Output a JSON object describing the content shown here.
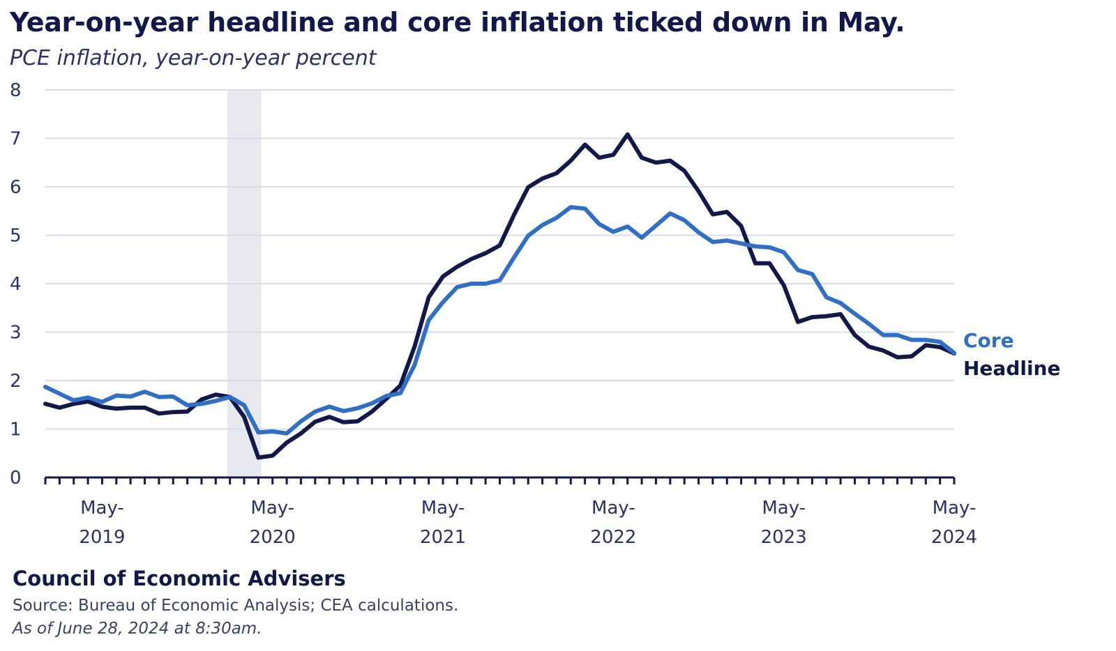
{
  "title": "Year-on-year headline and core inflation ticked down in May.",
  "subtitle": "PCE inflation, year-on-year percent",
  "footer": {
    "org": "Council of Economic Advisers",
    "source": "Source: Bureau of Economic Analysis; CEA calculations.",
    "as_of": "As of June 28, 2024 at 8:30am."
  },
  "chart_data": {
    "type": "line",
    "title": "Year-on-year headline and core inflation ticked down in May.",
    "subtitle": "PCE inflation, year-on-year percent",
    "xlabel": "",
    "ylabel": "",
    "x_range": [
      "2019-01",
      "2024-05"
    ],
    "ylim": [
      0,
      8
    ],
    "yticks": [
      0,
      1,
      2,
      3,
      4,
      5,
      6,
      7,
      8
    ],
    "grid": "horizontal",
    "x_tick_labels": [
      {
        "date": "2019-05",
        "line1": "May-",
        "line2": "2019"
      },
      {
        "date": "2020-05",
        "line1": "May-",
        "line2": "2020"
      },
      {
        "date": "2021-05",
        "line1": "May-",
        "line2": "2021"
      },
      {
        "date": "2022-05",
        "line1": "May-",
        "line2": "2022"
      },
      {
        "date": "2023-05",
        "line1": "May-",
        "line2": "2023"
      },
      {
        "date": "2024-05",
        "line1": "May-",
        "line2": "2024"
      }
    ],
    "shaded_period": {
      "start": "2020-02",
      "end": "2020-04"
    },
    "months": [
      "2019-01",
      "2019-02",
      "2019-03",
      "2019-04",
      "2019-05",
      "2019-06",
      "2019-07",
      "2019-08",
      "2019-09",
      "2019-10",
      "2019-11",
      "2019-12",
      "2020-01",
      "2020-02",
      "2020-03",
      "2020-04",
      "2020-05",
      "2020-06",
      "2020-07",
      "2020-08",
      "2020-09",
      "2020-10",
      "2020-11",
      "2020-12",
      "2021-01",
      "2021-02",
      "2021-03",
      "2021-04",
      "2021-05",
      "2021-06",
      "2021-07",
      "2021-08",
      "2021-09",
      "2021-10",
      "2021-11",
      "2021-12",
      "2022-01",
      "2022-02",
      "2022-03",
      "2022-04",
      "2022-05",
      "2022-06",
      "2022-07",
      "2022-08",
      "2022-09",
      "2022-10",
      "2022-11",
      "2022-12",
      "2023-01",
      "2023-02",
      "2023-03",
      "2023-04",
      "2023-05",
      "2023-06",
      "2023-07",
      "2023-08",
      "2023-09",
      "2023-10",
      "2023-11",
      "2023-12",
      "2024-01",
      "2024-02",
      "2024-03",
      "2024-04",
      "2024-05"
    ],
    "series": [
      {
        "name": "Headline",
        "color": "#12184a",
        "values": [
          1.52,
          1.44,
          1.52,
          1.57,
          1.46,
          1.42,
          1.44,
          1.44,
          1.32,
          1.35,
          1.36,
          1.61,
          1.71,
          1.66,
          1.25,
          0.41,
          0.45,
          0.72,
          0.91,
          1.15,
          1.25,
          1.14,
          1.16,
          1.36,
          1.62,
          1.9,
          2.7,
          3.72,
          4.15,
          4.35,
          4.51,
          4.63,
          4.79,
          5.42,
          5.99,
          6.17,
          6.28,
          6.54,
          6.87,
          6.6,
          6.66,
          7.08,
          6.6,
          6.5,
          6.54,
          6.33,
          5.91,
          5.43,
          5.48,
          5.19,
          4.42,
          4.42,
          3.97,
          3.21,
          3.31,
          3.33,
          3.37,
          2.94,
          2.7,
          2.62,
          2.48,
          2.5,
          2.73,
          2.69,
          2.56
        ]
      },
      {
        "name": "Core",
        "color": "#2f6fc6",
        "values": [
          1.87,
          1.73,
          1.59,
          1.65,
          1.56,
          1.69,
          1.67,
          1.77,
          1.66,
          1.67,
          1.49,
          1.52,
          1.58,
          1.66,
          1.49,
          0.93,
          0.95,
          0.91,
          1.16,
          1.36,
          1.46,
          1.37,
          1.43,
          1.53,
          1.68,
          1.74,
          2.32,
          3.25,
          3.62,
          3.93,
          4.0,
          4.0,
          4.07,
          4.54,
          4.99,
          5.21,
          5.36,
          5.58,
          5.55,
          5.23,
          5.07,
          5.18,
          4.95,
          5.2,
          5.45,
          5.31,
          5.06,
          4.86,
          4.89,
          4.83,
          4.77,
          4.75,
          4.65,
          4.28,
          4.2,
          3.72,
          3.6,
          3.38,
          3.17,
          2.94,
          2.94,
          2.84,
          2.84,
          2.8,
          2.57
        ]
      }
    ]
  }
}
